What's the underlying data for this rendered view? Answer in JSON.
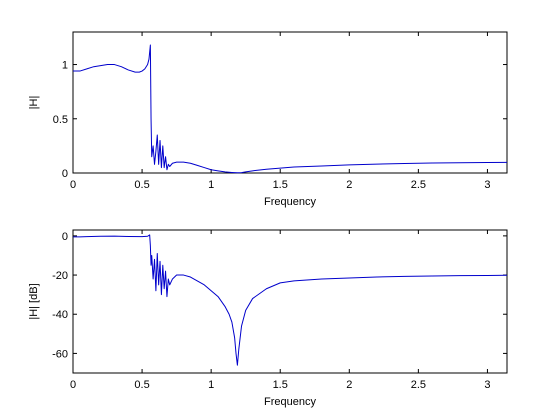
{
  "chart_data": [
    {
      "type": "line",
      "title": "",
      "xlabel": "Frequency",
      "ylabel": "|H|",
      "xlim": [
        0,
        3.1416
      ],
      "ylim": [
        0,
        1.3
      ],
      "xticks": [
        0,
        0.5,
        1,
        1.5,
        2,
        2.5,
        3
      ],
      "xtick_labels": [
        "0",
        "0.5",
        "1",
        "1.5",
        "2",
        "2.5",
        "3"
      ],
      "yticks": [
        0,
        0.5,
        1
      ],
      "ytick_labels": [
        "0",
        "0.5",
        "1"
      ],
      "grid": false,
      "color": "#0000cc",
      "series": [
        {
          "x": [
            0,
            0.05,
            0.1,
            0.15,
            0.2,
            0.25,
            0.3,
            0.35,
            0.4,
            0.45,
            0.48,
            0.5,
            0.52,
            0.54,
            0.55,
            0.56,
            0.565,
            0.57,
            0.58,
            0.59,
            0.6,
            0.61,
            0.62,
            0.63,
            0.64,
            0.65,
            0.66,
            0.67,
            0.68,
            0.69,
            0.7,
            0.72,
            0.75,
            0.8,
            0.85,
            0.9,
            0.95,
            1.0,
            1.05,
            1.1,
            1.15,
            1.19,
            1.22,
            1.25,
            1.3,
            1.4,
            1.5,
            1.6,
            1.8,
            2.0,
            2.2,
            2.4,
            2.6,
            2.8,
            3.0,
            3.1416
          ],
          "y": [
            0.94,
            0.94,
            0.96,
            0.98,
            0.99,
            1.0,
            1.0,
            0.98,
            0.95,
            0.93,
            0.93,
            0.94,
            0.96,
            1.0,
            1.05,
            1.18,
            0.5,
            0.15,
            0.25,
            0.08,
            0.2,
            0.35,
            0.08,
            0.3,
            0.05,
            0.25,
            0.05,
            0.15,
            0.03,
            0.08,
            0.06,
            0.09,
            0.1,
            0.1,
            0.09,
            0.07,
            0.05,
            0.03,
            0.02,
            0.01,
            0.005,
            0.002,
            0.004,
            0.01,
            0.02,
            0.035,
            0.045,
            0.055,
            0.065,
            0.075,
            0.082,
            0.088,
            0.092,
            0.095,
            0.097,
            0.098
          ]
        }
      ]
    },
    {
      "type": "line",
      "title": "",
      "xlabel": "Frequency",
      "ylabel": "|H| [dB]",
      "xlim": [
        0,
        3.1416
      ],
      "ylim": [
        -70,
        3
      ],
      "xticks": [
        0,
        0.5,
        1,
        1.5,
        2,
        2.5,
        3
      ],
      "xtick_labels": [
        "0",
        "0.5",
        "1",
        "1.5",
        "2",
        "2.5",
        "3"
      ],
      "yticks": [
        -60,
        -40,
        -20,
        0
      ],
      "ytick_labels": [
        "-60",
        "-40",
        "-20",
        "0"
      ],
      "grid": false,
      "color": "#0000cc",
      "series": [
        {
          "x": [
            0,
            0.05,
            0.1,
            0.2,
            0.3,
            0.4,
            0.5,
            0.54,
            0.555,
            0.56,
            0.565,
            0.57,
            0.58,
            0.59,
            0.6,
            0.61,
            0.62,
            0.63,
            0.64,
            0.65,
            0.66,
            0.67,
            0.68,
            0.69,
            0.7,
            0.72,
            0.75,
            0.8,
            0.85,
            0.9,
            0.95,
            1.0,
            1.05,
            1.1,
            1.13,
            1.15,
            1.17,
            1.18,
            1.19,
            1.2,
            1.22,
            1.25,
            1.3,
            1.4,
            1.5,
            1.6,
            1.8,
            2.0,
            2.2,
            2.4,
            2.6,
            2.8,
            3.0,
            3.1416
          ],
          "y": [
            -0.5,
            -0.5,
            -0.4,
            -0.2,
            -0.1,
            -0.3,
            -0.4,
            -0.2,
            0.5,
            -5,
            -15,
            -10,
            -22,
            -12,
            -28,
            -9,
            -25,
            -13,
            -30,
            -15,
            -27,
            -18,
            -31,
            -22,
            -25,
            -22,
            -20,
            -20,
            -21,
            -23,
            -25,
            -28,
            -31,
            -36,
            -40,
            -44,
            -52,
            -60,
            -66,
            -58,
            -46,
            -38,
            -32,
            -27,
            -24,
            -23,
            -22,
            -21.5,
            -21,
            -20.7,
            -20.5,
            -20.3,
            -20.2,
            -20.1
          ]
        }
      ]
    }
  ]
}
